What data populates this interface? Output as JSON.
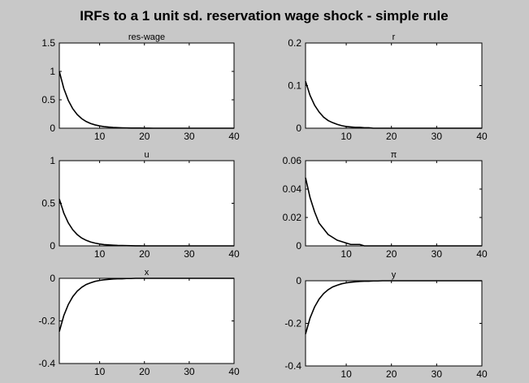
{
  "title": "IRFs to a 1 unit sd. reservation wage shock - simple rule",
  "colors": {
    "background": "#c8c8c8",
    "axes": "#ffffff",
    "line": "#000000",
    "zero_line": "#ff0000"
  },
  "chart_data": [
    {
      "type": "line",
      "title": "res-wage",
      "xlim": [
        1,
        40
      ],
      "ylim": [
        0,
        1.5
      ],
      "xticks": [
        10,
        20,
        30,
        40
      ],
      "xtick_labels": [
        "10",
        "20",
        "30",
        "40"
      ],
      "yticks": [
        0,
        0.5,
        1,
        1.5
      ],
      "ytick_labels": [
        "0",
        "0.5",
        "1",
        "1.5"
      ],
      "x": [
        1,
        2,
        3,
        4,
        5,
        6,
        7,
        8,
        9,
        10,
        11,
        12,
        13,
        14,
        15,
        16,
        17,
        18,
        19,
        20,
        21,
        22,
        23,
        24,
        25,
        26,
        27,
        28,
        29,
        30,
        31,
        32,
        33,
        34,
        35,
        36,
        37,
        38,
        39,
        40
      ],
      "values": [
        1,
        0.7,
        0.49,
        0.343,
        0.24,
        0.168,
        0.118,
        0.082,
        0.058,
        0.04,
        0.028,
        0.02,
        0.014,
        0.01,
        0.007,
        0.005,
        0.003,
        0.002,
        0.002,
        0.001,
        0.001,
        0,
        0,
        0,
        0,
        0,
        0,
        0,
        0,
        0,
        0,
        0,
        0,
        0,
        0,
        0,
        0,
        0,
        0,
        0
      ]
    },
    {
      "type": "line",
      "title": "r",
      "xlim": [
        1,
        40
      ],
      "ylim": [
        0,
        0.2
      ],
      "xticks": [
        10,
        20,
        30,
        40
      ],
      "xtick_labels": [
        "10",
        "20",
        "30",
        "40"
      ],
      "yticks": [
        0,
        0.1,
        0.2
      ],
      "ytick_labels": [
        "0",
        "0.1",
        "0.2"
      ],
      "x": [
        1,
        2,
        3,
        4,
        5,
        6,
        7,
        8,
        9,
        10,
        11,
        12,
        13,
        14,
        15,
        16,
        17,
        18,
        19,
        20,
        21,
        22,
        23,
        24,
        25,
        26,
        27,
        28,
        29,
        30,
        31,
        32,
        33,
        34,
        35,
        36,
        37,
        38,
        39,
        40
      ],
      "values": [
        0.11,
        0.077,
        0.054,
        0.038,
        0.026,
        0.018,
        0.013,
        0.009,
        0.006,
        0.004,
        0.003,
        0.002,
        0.002,
        0.001,
        0.001,
        0,
        0,
        0,
        0,
        0,
        0,
        0,
        0,
        0,
        0,
        0,
        0,
        0,
        0,
        0,
        0,
        0,
        0,
        0,
        0,
        0,
        0,
        0,
        0,
        0
      ]
    },
    {
      "type": "line",
      "title": "u",
      "xlim": [
        1,
        40
      ],
      "ylim": [
        0,
        1
      ],
      "xticks": [
        10,
        20,
        30,
        40
      ],
      "xtick_labels": [
        "10",
        "20",
        "30",
        "40"
      ],
      "yticks": [
        0,
        0.5,
        1
      ],
      "ytick_labels": [
        "0",
        "0.5",
        "1"
      ],
      "x": [
        1,
        2,
        3,
        4,
        5,
        6,
        7,
        8,
        9,
        10,
        11,
        12,
        13,
        14,
        15,
        16,
        17,
        18,
        19,
        20,
        21,
        22,
        23,
        24,
        25,
        26,
        27,
        28,
        29,
        30,
        31,
        32,
        33,
        34,
        35,
        36,
        37,
        38,
        39,
        40
      ],
      "values": [
        0.55,
        0.385,
        0.27,
        0.189,
        0.132,
        0.092,
        0.065,
        0.045,
        0.032,
        0.022,
        0.015,
        0.011,
        0.008,
        0.005,
        0.004,
        0.003,
        0.002,
        0.001,
        0.001,
        0,
        0,
        0,
        0,
        0,
        0,
        0,
        0,
        0,
        0,
        0,
        0,
        0,
        0,
        0,
        0,
        0,
        0,
        0,
        0,
        0
      ]
    },
    {
      "type": "line",
      "title": "π",
      "xlim": [
        1,
        40
      ],
      "ylim": [
        0,
        0.06
      ],
      "xticks": [
        10,
        20,
        30,
        40
      ],
      "xtick_labels": [
        "10",
        "20",
        "30",
        "40"
      ],
      "yticks": [
        0,
        0.02,
        0.04,
        0.06
      ],
      "ytick_labels": [
        "0",
        "0.02",
        "0.04",
        "0.06"
      ],
      "x": [
        1,
        2,
        3,
        4,
        5,
        6,
        7,
        8,
        9,
        10,
        11,
        12,
        13,
        14,
        15,
        16,
        17,
        18,
        19,
        20,
        21,
        22,
        23,
        24,
        25,
        26,
        27,
        28,
        29,
        30,
        31,
        32,
        33,
        34,
        35,
        36,
        37,
        38,
        39,
        40
      ],
      "values": [
        0.048,
        0.034,
        0.024,
        0.016,
        0.012,
        0.008,
        0.006,
        0.004,
        0.003,
        0.002,
        0.001,
        0.001,
        0.001,
        0,
        0,
        0,
        0,
        0,
        0,
        0,
        0,
        0,
        0,
        0,
        0,
        0,
        0,
        0,
        0,
        0,
        0,
        0,
        0,
        0,
        0,
        0,
        0,
        0,
        0,
        0
      ]
    },
    {
      "type": "line",
      "title": "x",
      "xlim": [
        1,
        40
      ],
      "ylim": [
        -0.4,
        0
      ],
      "xticks": [
        10,
        20,
        30,
        40
      ],
      "xtick_labels": [
        "10",
        "20",
        "30",
        "40"
      ],
      "yticks": [
        -0.4,
        -0.2,
        0
      ],
      "ytick_labels": [
        "-0.4",
        "-0.2",
        "0"
      ],
      "x": [
        1,
        2,
        3,
        4,
        5,
        6,
        7,
        8,
        9,
        10,
        11,
        12,
        13,
        14,
        15,
        16,
        17,
        18,
        19,
        20,
        21,
        22,
        23,
        24,
        25,
        26,
        27,
        28,
        29,
        30,
        31,
        32,
        33,
        34,
        35,
        36,
        37,
        38,
        39,
        40
      ],
      "values": [
        -0.25,
        -0.175,
        -0.123,
        -0.086,
        -0.06,
        -0.042,
        -0.029,
        -0.021,
        -0.014,
        -0.01,
        -0.007,
        -0.005,
        -0.003,
        -0.002,
        -0.002,
        -0.001,
        -0.001,
        0,
        0,
        0,
        0,
        0,
        0,
        0,
        0,
        0,
        0,
        0,
        0,
        0,
        0,
        0,
        0,
        0,
        0,
        0,
        0,
        0,
        0,
        0
      ]
    },
    {
      "type": "line",
      "title": "y",
      "xlim": [
        1,
        40
      ],
      "ylim": [
        -0.4,
        0
      ],
      "xticks": [
        10,
        20,
        30,
        40
      ],
      "xtick_labels": [
        "10",
        "20",
        "30",
        "40"
      ],
      "yticks": [
        -0.4,
        -0.2,
        0
      ],
      "ytick_labels": [
        "-0.4",
        "-0.2",
        "0"
      ],
      "x": [
        1,
        2,
        3,
        4,
        5,
        6,
        7,
        8,
        9,
        10,
        11,
        12,
        13,
        14,
        15,
        16,
        17,
        18,
        19,
        20,
        21,
        22,
        23,
        24,
        25,
        26,
        27,
        28,
        29,
        30,
        31,
        32,
        33,
        34,
        35,
        36,
        37,
        38,
        39,
        40
      ],
      "values": [
        -0.25,
        -0.175,
        -0.123,
        -0.086,
        -0.06,
        -0.042,
        -0.029,
        -0.021,
        -0.014,
        -0.01,
        -0.007,
        -0.005,
        -0.003,
        -0.002,
        -0.002,
        -0.001,
        -0.001,
        0,
        0,
        0,
        0,
        0,
        0,
        0,
        0,
        0,
        0,
        0,
        0,
        0,
        0,
        0,
        0,
        0,
        0,
        0,
        0,
        0,
        0,
        0
      ]
    }
  ]
}
